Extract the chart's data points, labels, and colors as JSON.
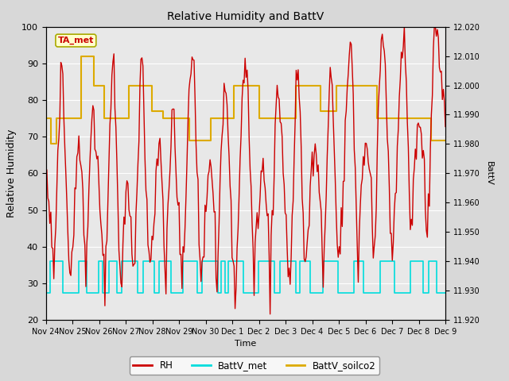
{
  "title": "Relative Humidity and BattV",
  "xlabel": "Time",
  "ylabel_left": "Relative Humidity",
  "ylabel_right": "BattV",
  "ylim_left": [
    20,
    100
  ],
  "ylim_right": [
    11.92,
    12.02
  ],
  "yticks_left": [
    20,
    30,
    40,
    50,
    60,
    70,
    80,
    90,
    100
  ],
  "yticks_right": [
    11.92,
    11.93,
    11.94,
    11.95,
    11.96,
    11.97,
    11.98,
    11.99,
    12.0,
    12.01,
    12.02
  ],
  "fig_bg_color": "#d8d8d8",
  "plot_bg_color": "#e8e8e8",
  "annotation_text": "TA_met",
  "annotation_color": "#cc0000",
  "annotation_bg": "#ffffcc",
  "annotation_edge": "#aaaa00",
  "rh_color": "#cc0000",
  "battv_met_color": "#00dddd",
  "battv_soilco2_color": "#ddaa00",
  "legend_labels": [
    "RH",
    "BattV_met",
    "BattV_soilco2"
  ],
  "x_tick_labels": [
    "Nov 24",
    "Nov 25",
    "Nov 26",
    "Nov 27",
    "Nov 28",
    "Nov 29",
    "Nov 30",
    "Dec 1",
    "Dec 2",
    "Dec 3",
    "Dec 4",
    "Dec 5",
    "Dec 6",
    "Dec 7",
    "Dec 8",
    "Dec 9"
  ],
  "x_tick_positions": [
    0,
    1,
    2,
    3,
    4,
    5,
    6,
    7,
    8,
    9,
    10,
    11,
    12,
    13,
    14,
    15
  ],
  "rh_seed": 12345,
  "n_pts": 400
}
